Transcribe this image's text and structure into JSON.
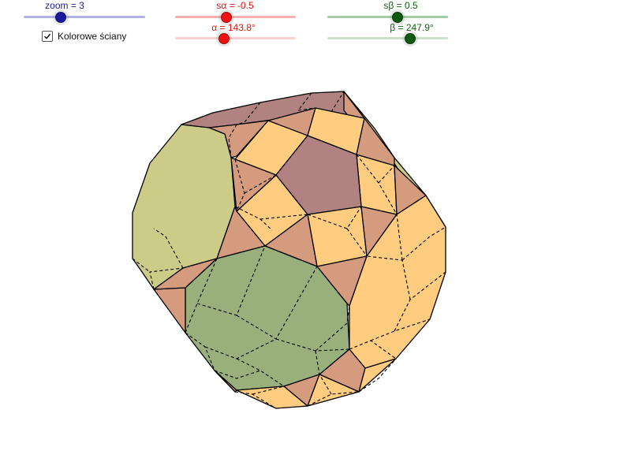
{
  "sliders": {
    "zoom": {
      "label": "zoom = 3",
      "value": 3,
      "color": "#1a1aa0",
      "track": "#6666cc"
    },
    "s_alpha": {
      "label": "sα = -0.5",
      "value": -0.5,
      "color": "#e01010",
      "track": "#f06060"
    },
    "alpha": {
      "label": "α = 143.8°",
      "value": 143.8,
      "color": "#e01010",
      "track": "#f4a0a0"
    },
    "s_beta": {
      "label": "sβ = 0.5",
      "value": 0.5,
      "color": "#106010",
      "track": "#4a9a4a"
    },
    "beta": {
      "label": "β = 247.9°",
      "value": 247.9,
      "color": "#106010",
      "track": "#9ac49a"
    }
  },
  "checkbox": {
    "label": "Kolorowe ściany",
    "checked": true
  },
  "face_colors": {
    "mauve": "#b08282",
    "orange": "#ffcc80",
    "tan": "#d49b7f",
    "olive": "#cccc88",
    "green": "#9ab07c"
  }
}
